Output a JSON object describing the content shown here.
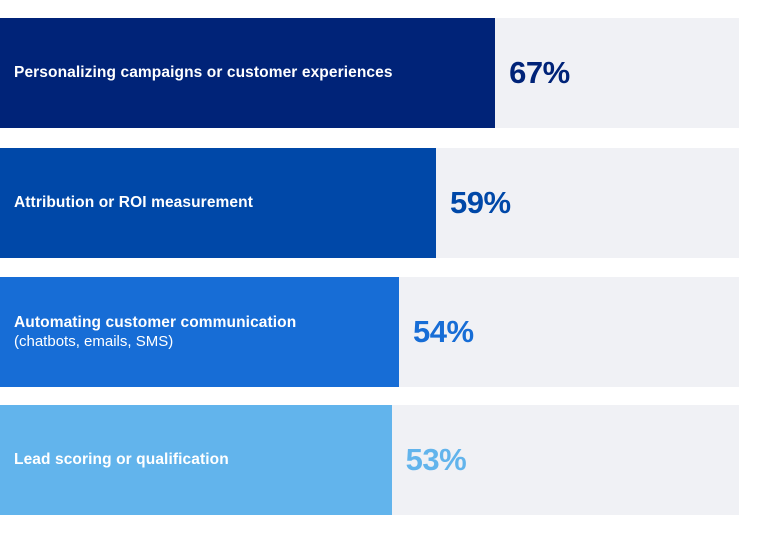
{
  "chart_data": {
    "type": "bar",
    "orientation": "horizontal",
    "xlim": [
      0,
      100
    ],
    "grid": false,
    "categories": [
      {
        "label": "Personalizing campaigns or customer experiences",
        "sublabel": "",
        "value": 67,
        "value_label": "67%",
        "color": "#002378"
      },
      {
        "label": "Attribution or ROI measurement",
        "sublabel": "",
        "value": 59,
        "value_label": "59%",
        "color": "#0048a8"
      },
      {
        "label": "Automating customer communication",
        "sublabel": "(chatbots, emails, SMS)",
        "value": 54,
        "value_label": "54%",
        "color": "#176dd6"
      },
      {
        "label": "Lead scoring or qualification",
        "sublabel": "",
        "value": 53,
        "value_label": "53%",
        "color": "#62b4ec"
      }
    ],
    "track_color": "#f0f1f5"
  }
}
